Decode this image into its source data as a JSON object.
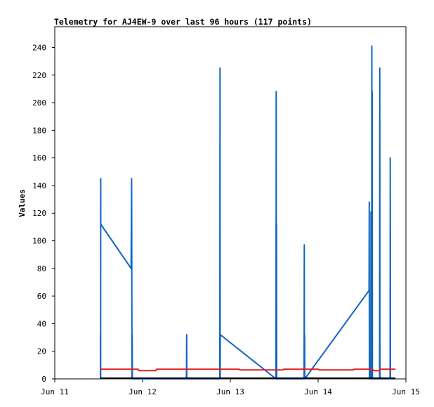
{
  "chart_data": {
    "type": "line",
    "title": "Telemetry for AJ4EW-9 over last 96 hours (117 points)",
    "xlabel": "",
    "ylabel": "Values",
    "xlim": [
      11.0,
      15.0
    ],
    "ylim": [
      0,
      255
    ],
    "x_ticks": [
      {
        "value": 11,
        "label": "Jun 11"
      },
      {
        "value": 12,
        "label": "Jun 12"
      },
      {
        "value": 13,
        "label": "Jun 13"
      },
      {
        "value": 14,
        "label": "Jun 14"
      },
      {
        "value": 15,
        "label": "Jun 15"
      }
    ],
    "y_ticks": [
      0,
      20,
      40,
      60,
      80,
      100,
      120,
      140,
      160,
      180,
      200,
      220,
      240
    ],
    "grid": false,
    "legend": "none",
    "series": [
      {
        "color": "#1065c0",
        "points": [
          [
            11.52,
            0
          ],
          [
            11.521,
            32
          ],
          [
            11.522,
            0
          ],
          [
            11.523,
            145
          ],
          [
            11.524,
            112
          ],
          [
            11.87,
            80
          ],
          [
            11.875,
            145
          ],
          [
            11.88,
            0
          ],
          [
            11.882,
            32
          ],
          [
            11.884,
            0
          ],
          [
            12.5,
            0
          ],
          [
            12.502,
            32
          ],
          [
            12.504,
            0
          ],
          [
            12.88,
            0
          ],
          [
            12.882,
            225
          ],
          [
            12.884,
            0
          ],
          [
            12.886,
            32
          ],
          [
            13.52,
            0
          ],
          [
            13.522,
            208
          ],
          [
            13.524,
            0
          ],
          [
            13.526,
            112
          ],
          [
            13.528,
            0
          ],
          [
            13.84,
            0
          ],
          [
            13.842,
            97
          ],
          [
            13.844,
            0
          ],
          [
            13.846,
            32
          ],
          [
            13.848,
            0
          ],
          [
            14.58,
            64
          ],
          [
            14.582,
            128
          ],
          [
            14.584,
            0
          ],
          [
            14.6,
            0
          ],
          [
            14.602,
            121
          ],
          [
            14.604,
            0
          ],
          [
            14.61,
            0
          ],
          [
            14.612,
            241
          ],
          [
            14.614,
            0
          ],
          [
            14.616,
            208
          ],
          [
            14.618,
            0
          ],
          [
            14.7,
            0
          ],
          [
            14.702,
            225
          ],
          [
            14.704,
            0
          ],
          [
            14.82,
            0
          ],
          [
            14.822,
            160
          ],
          [
            14.824,
            0
          ],
          [
            14.88,
            0
          ]
        ]
      },
      {
        "color": "#e02020",
        "points": [
          [
            11.52,
            7
          ],
          [
            11.95,
            7
          ],
          [
            11.96,
            6
          ],
          [
            12.15,
            6
          ],
          [
            12.16,
            7
          ],
          [
            13.1,
            7
          ],
          [
            13.11,
            6.5
          ],
          [
            13.6,
            6.5
          ],
          [
            13.61,
            7
          ],
          [
            14.0,
            7
          ],
          [
            14.01,
            6.5
          ],
          [
            14.4,
            6.5
          ],
          [
            14.41,
            7
          ],
          [
            14.62,
            7
          ],
          [
            14.63,
            6
          ],
          [
            14.7,
            6
          ],
          [
            14.71,
            7
          ],
          [
            14.88,
            7
          ]
        ]
      },
      {
        "color": "#000000",
        "points": [
          [
            11.52,
            0.5
          ],
          [
            14.88,
            0.5
          ]
        ]
      }
    ]
  }
}
